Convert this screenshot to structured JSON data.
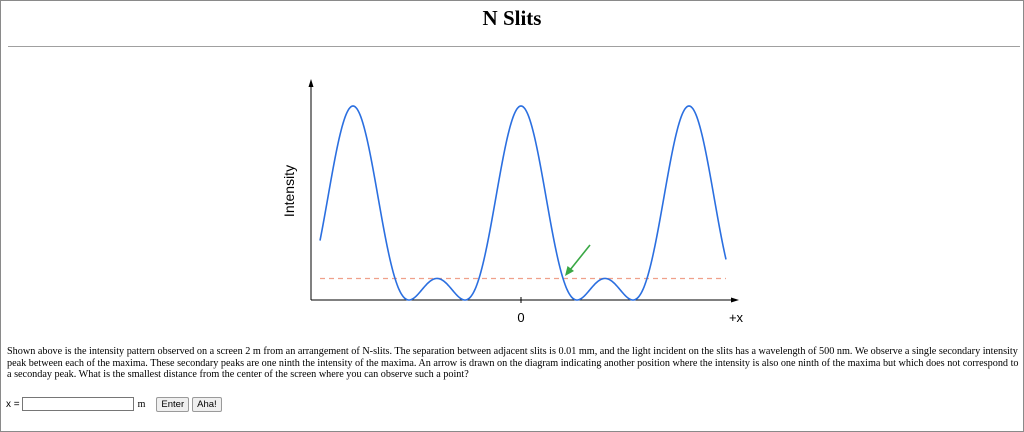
{
  "page": {
    "title": "N Slits"
  },
  "chart_data": {
    "type": "line",
    "ylabel": "Intensity",
    "x_tick_labels": [
      "0",
      "+x"
    ],
    "series": [
      {
        "description_curve": "intensity",
        "color": "#2b6fe0"
      }
    ],
    "reference_line": {
      "style": "dashed",
      "color": "#f0a08a",
      "level_fraction_of_max": 0.111
    },
    "arrow": {
      "color": "#3aa845"
    },
    "num_principal_maxima": 3
  },
  "problem": {
    "text": "Shown above is the intensity pattern observed on a screen 2 m from an arrangement of N-slits. The separation between adjacent slits is 0.01 mm, and the light incident on the slits has a wavelength of 500 nm. We observe a single secondary intensity peak between each of the maxima. These secondary peaks are one ninth the intensity of the maxima. An arrow is drawn on the diagram indicating another position where the intensity is also one ninth of the maxima but which does not correspond to a seconday peak. What is the smallest distance from the center of the screen where you can observe such a point?"
  },
  "answer": {
    "label": "x =",
    "value": "",
    "placeholder": "",
    "unit": "m",
    "enter_label": "Enter",
    "aha_label": "Aha!"
  }
}
